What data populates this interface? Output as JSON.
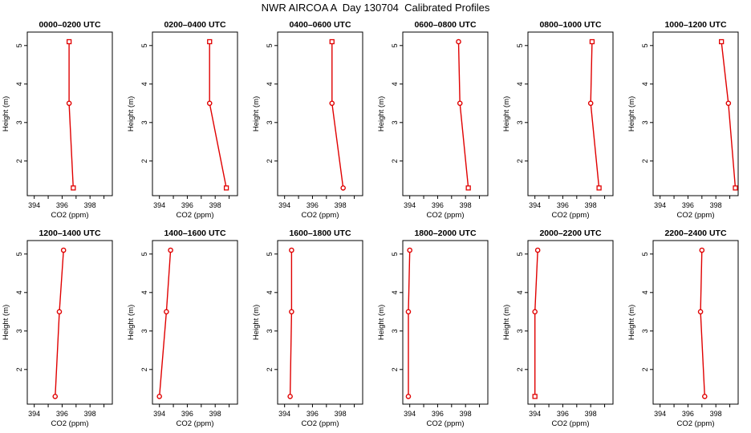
{
  "title": "NWR AIRCOA A  Day 130704  Calibrated Profiles",
  "xlabel": "CO2 (ppm)",
  "ylabel": "Height (m)",
  "xlim": [
    393.5,
    399.6
  ],
  "ylim": [
    1.1,
    5.35
  ],
  "xticks": [
    394,
    396,
    398
  ],
  "yticks": [
    2,
    3,
    4,
    5
  ],
  "line_color": "#e00000",
  "chart_data": [
    {
      "type": "line",
      "title": "0000–0200 UTC",
      "heights": [
        1.3,
        3.5,
        5.1
      ],
      "values": [
        396.8,
        396.5,
        396.5
      ],
      "markers": [
        "square",
        "circle",
        "square"
      ]
    },
    {
      "type": "line",
      "title": "0200–0400 UTC",
      "heights": [
        1.3,
        3.5,
        5.1
      ],
      "values": [
        398.8,
        397.6,
        397.6
      ],
      "markers": [
        "square",
        "circle",
        "square"
      ]
    },
    {
      "type": "line",
      "title": "0400–0600 UTC",
      "heights": [
        1.3,
        3.5,
        5.1
      ],
      "values": [
        398.2,
        397.4,
        397.4
      ],
      "markers": [
        "circle",
        "circle",
        "square"
      ]
    },
    {
      "type": "line",
      "title": "0600–0800 UTC",
      "heights": [
        1.3,
        3.5,
        5.1
      ],
      "values": [
        398.2,
        397.6,
        397.5
      ],
      "markers": [
        "square",
        "circle",
        "circle"
      ]
    },
    {
      "type": "line",
      "title": "0800–1000 UTC",
      "heights": [
        1.3,
        3.5,
        5.1
      ],
      "values": [
        398.6,
        398.0,
        398.1
      ],
      "markers": [
        "square",
        "circle",
        "square"
      ]
    },
    {
      "type": "line",
      "title": "1000–1200 UTC",
      "heights": [
        1.3,
        3.5,
        5.1
      ],
      "values": [
        399.4,
        398.9,
        398.4
      ],
      "markers": [
        "square",
        "circle",
        "square"
      ]
    },
    {
      "type": "line",
      "title": "1200–1400 UTC",
      "heights": [
        1.3,
        3.5,
        5.1
      ],
      "values": [
        395.5,
        395.8,
        396.1
      ],
      "markers": [
        "circle",
        "circle",
        "circle"
      ]
    },
    {
      "type": "line",
      "title": "1400–1600 UTC",
      "heights": [
        1.3,
        3.5,
        5.1
      ],
      "values": [
        394.0,
        394.5,
        394.8
      ],
      "markers": [
        "circle",
        "circle",
        "circle"
      ]
    },
    {
      "type": "line",
      "title": "1600–1800 UTC",
      "heights": [
        1.3,
        3.5,
        5.1
      ],
      "values": [
        394.4,
        394.5,
        394.5
      ],
      "markers": [
        "circle",
        "circle",
        "circle"
      ]
    },
    {
      "type": "line",
      "title": "1800–2000 UTC",
      "heights": [
        1.3,
        3.5,
        5.1
      ],
      "values": [
        393.9,
        393.9,
        394.0
      ],
      "markers": [
        "circle",
        "circle",
        "circle"
      ]
    },
    {
      "type": "line",
      "title": "2000–2200 UTC",
      "heights": [
        1.3,
        3.5,
        5.1
      ],
      "values": [
        394.0,
        394.0,
        394.2
      ],
      "markers": [
        "square",
        "circle",
        "circle"
      ]
    },
    {
      "type": "line",
      "title": "2200–2400 UTC",
      "heights": [
        1.3,
        3.5,
        5.1
      ],
      "values": [
        397.2,
        396.9,
        397.0
      ],
      "markers": [
        "circle",
        "circle",
        "circle"
      ]
    }
  ]
}
